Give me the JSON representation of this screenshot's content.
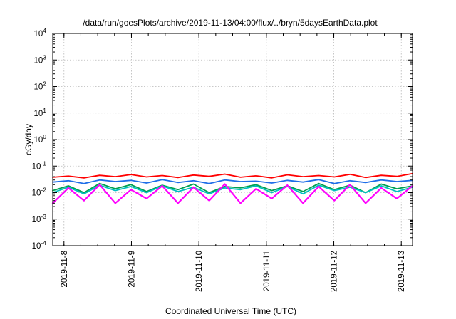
{
  "chart_data": {
    "type": "line",
    "title": "/data/run/goesPlots/archive/2019-11-13/04:00/flux/../bryn/5daysEarthData.plot",
    "xlabel": "Coordinated Universal Time (UTC)",
    "ylabel": "cGy/day",
    "yscale": "log",
    "ylim": [
      0.0001,
      10000
    ],
    "yticks": [
      {
        "base": "10",
        "exp": "4"
      },
      {
        "base": "10",
        "exp": "3"
      },
      {
        "base": "10",
        "exp": "2"
      },
      {
        "base": "10",
        "exp": "1"
      },
      {
        "base": "10",
        "exp": "0"
      },
      {
        "base": "10",
        "exp": "-1"
      },
      {
        "base": "10",
        "exp": "-2"
      },
      {
        "base": "10",
        "exp": "-3"
      },
      {
        "base": "10",
        "exp": "-4"
      }
    ],
    "xlim": [
      "2019-11-07T20:00",
      "2019-11-13T04:00"
    ],
    "xticks": [
      "2019-11-8",
      "2019-11-9",
      "2019-11-10",
      "2019-11-11",
      "2019-11-12",
      "2019-11-13"
    ],
    "grid": true,
    "legend": "none",
    "series": [
      {
        "color": "#ff0000",
        "values": [
          0.038,
          0.042,
          0.036,
          0.045,
          0.04,
          0.048,
          0.039,
          0.044,
          0.037,
          0.046,
          0.041,
          0.05,
          0.038,
          0.043,
          0.036,
          0.047,
          0.04,
          0.044,
          0.039,
          0.049,
          0.037,
          0.045,
          0.041,
          0.052
        ]
      },
      {
        "color": "#00a050",
        "values": [
          0.012,
          0.018,
          0.01,
          0.022,
          0.014,
          0.02,
          0.011,
          0.019,
          0.013,
          0.021,
          0.01,
          0.017,
          0.015,
          0.02,
          0.012,
          0.018,
          0.011,
          0.022,
          0.013,
          0.019,
          0.01,
          0.021,
          0.014,
          0.018
        ]
      },
      {
        "color": "#00c0c0",
        "values": [
          0.01,
          0.016,
          0.009,
          0.019,
          0.012,
          0.017,
          0.01,
          0.018,
          0.011,
          0.016,
          0.009,
          0.015,
          0.013,
          0.018,
          0.01,
          0.017,
          0.009,
          0.019,
          0.012,
          0.016,
          0.01,
          0.018,
          0.011,
          0.016
        ]
      },
      {
        "color": "#1e6ee8",
        "values": [
          0.025,
          0.028,
          0.022,
          0.03,
          0.026,
          0.029,
          0.023,
          0.031,
          0.024,
          0.028,
          0.022,
          0.03,
          0.026,
          0.027,
          0.023,
          0.029,
          0.025,
          0.031,
          0.022,
          0.028,
          0.024,
          0.03,
          0.026,
          0.029
        ]
      },
      {
        "color": "#ff00ff",
        "values": [
          0.004,
          0.015,
          0.005,
          0.02,
          0.004,
          0.013,
          0.006,
          0.018,
          0.004,
          0.016,
          0.005,
          0.021,
          0.004,
          0.014,
          0.006,
          0.019,
          0.004,
          0.017,
          0.005,
          0.02,
          0.004,
          0.015,
          0.006,
          0.018
        ]
      }
    ]
  }
}
